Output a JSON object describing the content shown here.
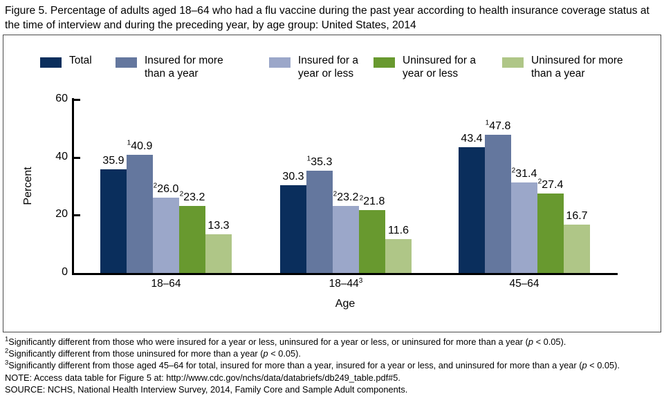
{
  "figure": {
    "title": "Figure 5. Percentage of adults aged 18–64 who had a flu vaccine during the past year according to health insurance coverage status at the time of interview and during the preceding year, by age group: United States, 2014"
  },
  "legend": {
    "items": [
      {
        "label": "Total",
        "color": "#0a2e5c"
      },
      {
        "label": "Insured for more\nthan a year",
        "color": "#64779e"
      },
      {
        "label": "Insured for a\nyear or less",
        "color": "#9ba7c9"
      },
      {
        "label": "Uninsured for a\nyear or less",
        "color": "#68992f"
      },
      {
        "label": "Uninsured for more\nthan a year",
        "color": "#afc687"
      }
    ]
  },
  "chart_data": {
    "type": "bar",
    "title": "",
    "xlabel": "Age",
    "ylabel": "Percent",
    "ylim": [
      0,
      60
    ],
    "yticks": [
      0,
      20,
      40,
      60
    ],
    "grid": false,
    "legend_position": "top",
    "categories": [
      "18–64",
      "18–44",
      "45–64"
    ],
    "category_sups": [
      "",
      "3",
      ""
    ],
    "series": [
      {
        "name": "Total",
        "color": "#0a2e5c",
        "values": [
          35.9,
          30.3,
          43.4
        ],
        "label_sups": [
          "",
          "",
          ""
        ]
      },
      {
        "name": "Insured for more than a year",
        "color": "#64779e",
        "values": [
          40.9,
          35.3,
          47.8
        ],
        "label_sups": [
          "1",
          "1",
          "1"
        ]
      },
      {
        "name": "Insured for a year or less",
        "color": "#9ba7c9",
        "values": [
          26.0,
          23.2,
          31.4
        ],
        "label_sups": [
          "2",
          "2",
          "2"
        ]
      },
      {
        "name": "Uninsured for a year or less",
        "color": "#68992f",
        "values": [
          23.2,
          21.8,
          27.4
        ],
        "label_sups": [
          "2",
          "2",
          "2"
        ]
      },
      {
        "name": "Uninsured for more than a year",
        "color": "#afc687",
        "values": [
          13.3,
          11.6,
          16.7
        ],
        "label_sups": [
          "",
          "",
          ""
        ]
      }
    ]
  },
  "footnotes": {
    "sup_notes": [
      {
        "sup": "1",
        "pre": "Significantly different from those who were insured for a year or less, uninsured for a year or less, or uninsured for more than a year (",
        "italic": "p",
        "post": " < 0.05)."
      },
      {
        "sup": "2",
        "pre": "Significantly different from those uninsured for more than a year (",
        "italic": "p",
        "post": " < 0.05)."
      },
      {
        "sup": "3",
        "pre": "Significantly different from those aged 45–64 for total, insured for more than a year, insured for a year or less, and uninsured for more than a year (",
        "italic": "p",
        "post": " < 0.05)."
      }
    ],
    "note": "NOTE: Access data table for Figure 5 at: http://www.cdc.gov/nchs/data/databriefs/db249_table.pdf#5.",
    "source": "SOURCE: NCHS, National Health Interview Survey, 2014, Family Core and Sample Adult components."
  }
}
